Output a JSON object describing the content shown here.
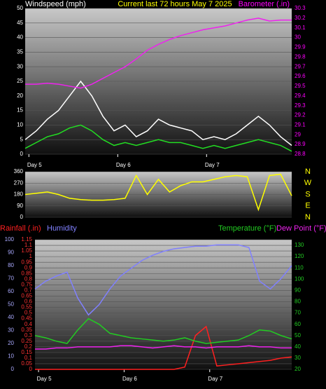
{
  "chart_data": [
    {
      "type": "line",
      "title": "Current last 72 hours May 7 2025",
      "y_label": "Windspeed (mph)",
      "y2_label": "Barometer (.in)",
      "x": [
        0,
        3,
        6,
        9,
        12,
        15,
        18,
        21,
        24,
        27,
        30,
        33,
        36,
        39,
        42,
        45,
        48,
        51,
        54,
        57,
        60,
        63,
        66,
        69,
        72
      ],
      "xlim": [
        0,
        72
      ],
      "xticks": [
        {
          "value": 1,
          "label": "Day 5"
        },
        {
          "value": 25,
          "label": "Day 6"
        },
        {
          "value": 49,
          "label": "Day 7"
        }
      ],
      "ylim": [
        0,
        50
      ],
      "yticks": [
        0,
        5,
        10,
        15,
        20,
        25,
        30,
        35,
        40,
        45,
        50
      ],
      "y2lim": [
        28.8,
        30.3
      ],
      "y2ticks": [
        28.8,
        28.9,
        29,
        29.1,
        29.2,
        29.3,
        29.4,
        29.5,
        29.6,
        29.7,
        29.8,
        29.9,
        30,
        30.1,
        30.2,
        30.3
      ],
      "grid": true,
      "series": [
        {
          "color": "#ffffff",
          "axis": "y",
          "values": [
            5,
            8,
            12,
            15,
            20,
            25,
            20,
            13,
            8,
            10,
            6,
            8,
            12,
            10,
            9,
            8,
            5,
            6,
            5,
            7,
            10,
            13,
            10,
            6,
            3
          ]
        },
        {
          "color": "#22dd22",
          "axis": "y",
          "values": [
            2,
            4,
            6,
            7,
            9,
            10,
            8,
            5,
            3,
            4,
            3,
            4,
            5,
            4,
            4,
            3,
            2,
            3,
            2,
            3,
            4,
            5,
            4,
            3,
            1
          ]
        },
        {
          "color": "#ee22ee",
          "axis": "y2",
          "values": [
            29.52,
            29.52,
            29.53,
            29.52,
            29.5,
            29.48,
            29.52,
            29.58,
            29.64,
            29.7,
            29.78,
            29.87,
            29.93,
            29.98,
            30.02,
            30.05,
            30.08,
            30.1,
            30.12,
            30.15,
            30.18,
            30.2,
            30.17,
            30.18,
            30.18
          ]
        }
      ]
    },
    {
      "type": "line",
      "x": [
        0,
        3,
        6,
        9,
        12,
        15,
        18,
        21,
        24,
        27,
        30,
        33,
        36,
        39,
        42,
        45,
        48,
        51,
        54,
        57,
        60,
        63,
        66,
        69,
        72
      ],
      "xlim": [
        0,
        72
      ],
      "ylim": [
        0,
        360
      ],
      "yticks": [
        0,
        90,
        180,
        270,
        360
      ],
      "y2lim": [
        0,
        360
      ],
      "y2ticks": [
        {
          "value": 360,
          "label": "N"
        },
        {
          "value": 270,
          "label": "W"
        },
        {
          "value": 180,
          "label": "S"
        },
        {
          "value": 90,
          "label": "E"
        },
        {
          "value": 0,
          "label": "N"
        }
      ],
      "grid": true,
      "series": [
        {
          "color": "#ffff00",
          "axis": "y",
          "values": [
            180,
            190,
            200,
            180,
            150,
            140,
            135,
            135,
            140,
            150,
            330,
            180,
            300,
            200,
            250,
            280,
            280,
            300,
            320,
            330,
            320,
            60,
            330,
            340,
            170
          ]
        }
      ]
    },
    {
      "type": "line",
      "x": [
        0,
        3,
        6,
        9,
        12,
        15,
        18,
        21,
        24,
        27,
        30,
        33,
        36,
        39,
        42,
        45,
        48,
        51,
        54,
        57,
        60,
        63,
        66,
        69,
        72
      ],
      "xlim": [
        0,
        72
      ],
      "xticks": [
        {
          "value": 1,
          "label": "Day 5"
        },
        {
          "value": 25,
          "label": "Day 6"
        },
        {
          "value": 49,
          "label": "Day 7"
        }
      ],
      "ylim": [
        0,
        1.15
      ],
      "yticks": [
        0,
        0.05,
        0.1,
        0.15,
        0.2,
        0.25,
        0.3,
        0.35,
        0.4,
        0.45,
        0.5,
        0.55,
        0.6,
        0.65,
        0.7,
        0.75,
        0.8,
        0.85,
        0.9,
        0.95,
        1,
        1.05,
        1.1,
        1.15
      ],
      "y2lim": [
        20,
        135
      ],
      "y2ticks": [
        20,
        30,
        40,
        50,
        60,
        70,
        80,
        90,
        100,
        110,
        120,
        130
      ],
      "y3lim": [
        0,
        100
      ],
      "y3ticks": [
        0,
        10,
        20,
        30,
        40,
        50,
        60,
        70,
        80,
        90,
        100
      ],
      "grid": true,
      "series": [
        {
          "name": "Rainfall (.in)",
          "color": "#ff2020",
          "axis": "y",
          "values": [
            0,
            0,
            0,
            0,
            0,
            0,
            0,
            0,
            0,
            0,
            0,
            0,
            0,
            0,
            0.02,
            0.3,
            0.38,
            0.03,
            0.04,
            0.05,
            0.06,
            0.07,
            0.08,
            0.1,
            0.11
          ]
        },
        {
          "name": "Humidity",
          "color": "#8080ff",
          "axis": "y3",
          "values": [
            62,
            68,
            72,
            75,
            55,
            42,
            50,
            62,
            72,
            78,
            84,
            88,
            91,
            93,
            94,
            95,
            95,
            96,
            96,
            96,
            94,
            68,
            62,
            70,
            80
          ]
        },
        {
          "name": "Temperature (°F)",
          "color": "#22cc22",
          "axis": "y2",
          "values": [
            50,
            48,
            45,
            43,
            55,
            65,
            60,
            52,
            50,
            48,
            47,
            46,
            45,
            46,
            48,
            45,
            43,
            44,
            45,
            46,
            50,
            55,
            54,
            50,
            47
          ]
        },
        {
          "name": "Dew Point (°F)",
          "color": "#ee22ee",
          "axis": "y2",
          "values": [
            38,
            38,
            39,
            39,
            40,
            40,
            40,
            40,
            41,
            41,
            40,
            39,
            40,
            41,
            40,
            40,
            39,
            40,
            40,
            40,
            41,
            40,
            40,
            39,
            39
          ]
        }
      ]
    }
  ]
}
